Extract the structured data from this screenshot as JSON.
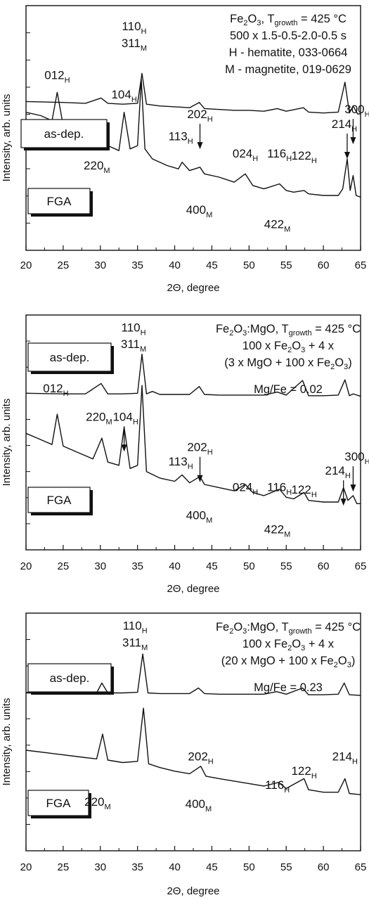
{
  "chart_data": [
    {
      "type": "line",
      "xlabel": "2Θ, degree",
      "ylabel": "Intensity, arb. units",
      "xlim": [
        20,
        65
      ],
      "xticks": [
        20,
        25,
        30,
        35,
        40,
        45,
        50,
        55,
        60,
        65
      ],
      "info_lines": [
        "Fe₂O₃, T_growth = 425 °C",
        "500 x 1.5-0.5-2.0-0.5 s",
        "H - hematite, 033-0664",
        "M - magnetite, 019-0629"
      ],
      "series": [
        {
          "name": "as-dep.",
          "x": [
            20,
            22,
            23.5,
            24.2,
            25,
            27,
            29,
            31,
            32.5,
            33.2,
            34,
            35,
            35.5,
            36,
            37,
            39,
            40.5,
            41,
            42,
            43.4,
            44,
            46,
            48,
            49.5,
            50.5,
            52,
            54.1,
            55,
            56,
            57.4,
            58,
            60,
            62,
            62.6,
            63.2,
            63.6,
            64,
            64.4,
            65
          ],
          "y": [
            0.8,
            0.78,
            0.75,
            0.92,
            0.72,
            0.68,
            0.64,
            0.6,
            0.57,
            0.8,
            0.58,
            0.6,
            1.0,
            0.58,
            0.52,
            0.48,
            0.46,
            0.5,
            0.45,
            0.47,
            0.43,
            0.41,
            0.38,
            0.43,
            0.36,
            0.34,
            0.37,
            0.33,
            0.32,
            0.33,
            0.31,
            0.3,
            0.3,
            0.34,
            0.52,
            0.33,
            0.42,
            0.3,
            0.29
          ]
        },
        {
          "name": "FGA",
          "x": [
            20,
            25,
            28,
            30.1,
            31,
            33,
            35,
            35.6,
            36.2,
            38,
            40,
            42,
            43.3,
            44,
            46,
            48,
            50,
            52,
            53.8,
            55,
            57.3,
            58,
            60,
            62,
            62.9,
            63.5,
            64,
            64.6,
            65
          ],
          "y": [
            0.3,
            0.29,
            0.28,
            0.34,
            0.28,
            0.27,
            0.28,
            0.62,
            0.27,
            0.25,
            0.24,
            0.23,
            0.29,
            0.22,
            0.21,
            0.2,
            0.2,
            0.19,
            0.22,
            0.19,
            0.23,
            0.18,
            0.17,
            0.18,
            0.52,
            0.17,
            0.25,
            0.16,
            0.16
          ]
        }
      ],
      "annotations": [
        {
          "text": "012",
          "sub": "H",
          "x": 24.2
        },
        {
          "text": "104",
          "sub": "H",
          "x": 33.2
        },
        {
          "text": "110",
          "sub": "H",
          "x": 35.5
        },
        {
          "text": "311",
          "sub": "M",
          "x": 35.5
        },
        {
          "text": "113",
          "sub": "H",
          "x": 41
        },
        {
          "text": "202",
          "sub": "H",
          "x": 43.4
        },
        {
          "text": "024",
          "sub": "H",
          "x": 49.5
        },
        {
          "text": "116",
          "sub": "H",
          "x": 54.1
        },
        {
          "text": "122",
          "sub": "H",
          "x": 57.4
        },
        {
          "text": "214",
          "sub": "H",
          "x": 63.2
        },
        {
          "text": "300",
          "sub": "H",
          "x": 64
        },
        {
          "text": "220",
          "sub": "M",
          "x": 30.1
        },
        {
          "text": "400",
          "sub": "M",
          "x": 43.3
        },
        {
          "text": "422",
          "sub": "M",
          "x": 53.8
        }
      ]
    },
    {
      "type": "line",
      "xlabel": "2Θ, degree",
      "ylabel": "Intensity, arb. units",
      "xlim": [
        20,
        65
      ],
      "xticks": [
        20,
        25,
        30,
        35,
        40,
        45,
        50,
        55,
        60,
        65
      ],
      "info_lines": [
        "Fe₂O₃:MgO, T_growth = 425 °C",
        "100 x Fe₂O₃ + 4 x",
        "(3 x MgO + 100 x Fe₂O₃)",
        "Mg/Fe = 0.02"
      ],
      "series": [
        {
          "name": "as-dep.",
          "x": [
            20,
            22,
            23.5,
            24.2,
            25,
            27,
            29,
            30.2,
            31,
            32.5,
            33.2,
            34,
            35,
            35.6,
            36.2,
            38,
            40,
            41,
            42,
            43.4,
            44,
            46,
            48,
            49.5,
            50.5,
            52,
            54.1,
            55,
            56,
            57.4,
            58,
            60,
            62,
            62.7,
            63.3,
            64,
            64.5,
            65
          ],
          "y": [
            0.7,
            0.66,
            0.63,
            0.82,
            0.62,
            0.58,
            0.54,
            0.67,
            0.52,
            0.5,
            0.74,
            0.48,
            0.5,
            1.0,
            0.46,
            0.42,
            0.4,
            0.44,
            0.39,
            0.43,
            0.38,
            0.36,
            0.34,
            0.38,
            0.33,
            0.31,
            0.35,
            0.3,
            0.29,
            0.33,
            0.28,
            0.27,
            0.27,
            0.36,
            0.28,
            0.31,
            0.26,
            0.26
          ]
        },
        {
          "name": "FGA",
          "x": [
            20,
            25,
            28,
            30.1,
            31,
            33,
            35,
            35.6,
            36.2,
            37,
            38,
            40,
            42,
            43.3,
            44,
            46,
            48,
            50,
            52,
            53.8,
            55,
            57.2,
            58,
            60,
            62,
            62.9,
            63.5,
            64,
            65
          ],
          "y": [
            0.18,
            0.17,
            0.17,
            0.34,
            0.17,
            0.17,
            0.18,
            0.82,
            0.17,
            0.21,
            0.16,
            0.16,
            0.16,
            0.29,
            0.16,
            0.15,
            0.15,
            0.15,
            0.15,
            0.2,
            0.15,
            0.39,
            0.14,
            0.14,
            0.15,
            0.4,
            0.14,
            0.17,
            0.13
          ]
        }
      ],
      "annotations": [
        {
          "text": "012",
          "sub": "H",
          "x": 24.2
        },
        {
          "text": "104",
          "sub": "H",
          "x": 33.2
        },
        {
          "text": "110",
          "sub": "H",
          "x": 35.6
        },
        {
          "text": "311",
          "sub": "M",
          "x": 35.6
        },
        {
          "text": "220",
          "sub": "M",
          "x": 30.2
        },
        {
          "text": "113",
          "sub": "H",
          "x": 41
        },
        {
          "text": "202",
          "sub": "H",
          "x": 43.4
        },
        {
          "text": "024",
          "sub": "H",
          "x": 49.5
        },
        {
          "text": "116",
          "sub": "H",
          "x": 54.1
        },
        {
          "text": "122",
          "sub": "H",
          "x": 57.4
        },
        {
          "text": "214",
          "sub": "H",
          "x": 62.7
        },
        {
          "text": "300",
          "sub": "H",
          "x": 64
        },
        {
          "text": "400",
          "sub": "M",
          "x": 43.3
        },
        {
          "text": "422",
          "sub": "M",
          "x": 53.8
        }
      ]
    },
    {
      "type": "line",
      "xlabel": "2Θ, degree",
      "ylabel": "Intensity, arb. units",
      "xlim": [
        20,
        65
      ],
      "xticks": [
        20,
        25,
        30,
        35,
        40,
        45,
        50,
        55,
        60,
        65
      ],
      "info_lines": [
        "Fe₂O₃:MgO, T_growth = 425 °C",
        "100 x Fe₂O₃ + 4 x",
        "(20 x MgO + 100 x Fe₂O₃)",
        "Mg/Fe = 0.23"
      ],
      "series": [
        {
          "name": "as-dep.",
          "x": [
            20,
            24,
            28,
            29.5,
            30.3,
            31,
            33,
            35,
            35.8,
            36.5,
            38,
            40,
            42,
            43.5,
            44.2,
            46,
            48,
            50,
            52,
            54,
            55,
            57.4,
            58,
            60,
            62,
            62.9,
            63.5,
            65
          ],
          "y": [
            0.66,
            0.63,
            0.6,
            0.59,
            0.79,
            0.58,
            0.56,
            0.57,
            1.0,
            0.55,
            0.52,
            0.49,
            0.47,
            0.53,
            0.45,
            0.43,
            0.41,
            0.39,
            0.37,
            0.4,
            0.35,
            0.43,
            0.34,
            0.32,
            0.32,
            0.43,
            0.31,
            0.3
          ]
        },
        {
          "name": "FGA",
          "x": [
            20,
            24,
            28,
            29.5,
            30.2,
            31,
            33,
            35,
            35.7,
            36.4,
            38,
            40,
            42,
            43.2,
            44,
            46,
            48,
            50,
            52,
            53.7,
            55,
            57.2,
            58,
            60,
            62,
            62.8,
            63.5,
            65
          ],
          "y": [
            0.17,
            0.17,
            0.17,
            0.17,
            0.33,
            0.17,
            0.17,
            0.18,
            0.8,
            0.17,
            0.16,
            0.16,
            0.16,
            0.25,
            0.16,
            0.15,
            0.15,
            0.15,
            0.15,
            0.19,
            0.15,
            0.25,
            0.14,
            0.14,
            0.15,
            0.33,
            0.14,
            0.13
          ]
        }
      ],
      "annotations": [
        {
          "text": "110",
          "sub": "H",
          "x": 35.8
        },
        {
          "text": "311",
          "sub": "M",
          "x": 35.8
        },
        {
          "text": "202",
          "sub": "H",
          "x": 43.5
        },
        {
          "text": "116",
          "sub": "H",
          "x": 54
        },
        {
          "text": "122",
          "sub": "H",
          "x": 57.4
        },
        {
          "text": "214",
          "sub": "H",
          "x": 62.9
        },
        {
          "text": "220",
          "sub": "M",
          "x": 30.2
        },
        {
          "text": "400",
          "sub": "M",
          "x": 43.2
        }
      ]
    }
  ]
}
